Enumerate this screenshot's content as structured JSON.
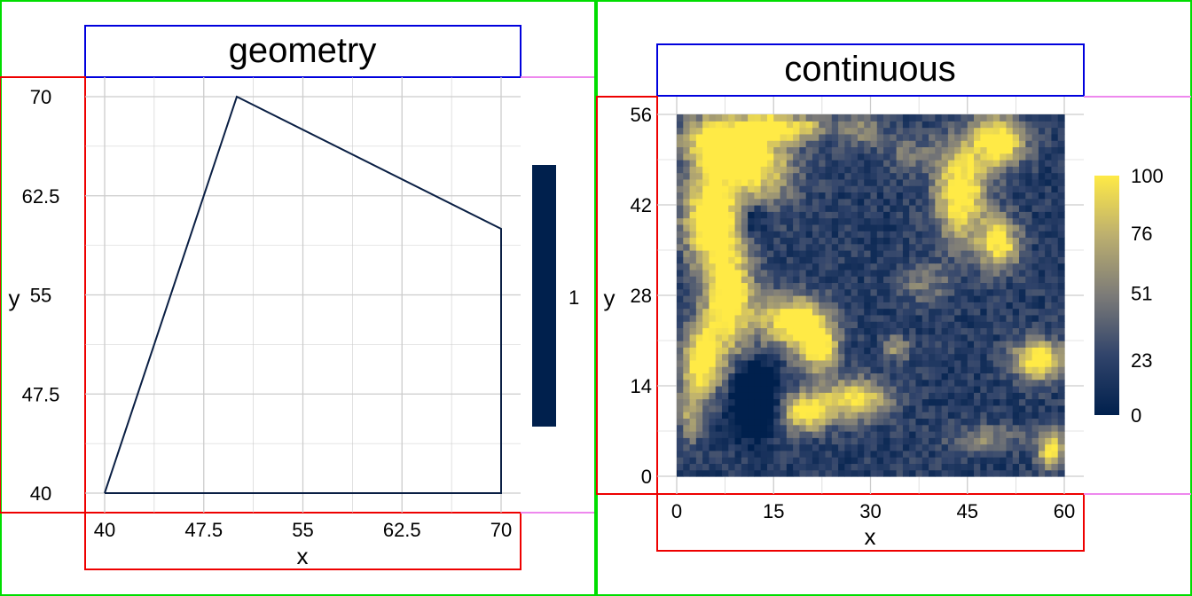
{
  "colors": {
    "outer_box": "#00dd00",
    "title_box": "#0000dd",
    "axis_box": "#ee0000",
    "legend_box": "#ee88ee",
    "grid": "#cccccc",
    "polygon": "#0a1f44",
    "viridis_low": "#00204d",
    "viridis_mid": "#7c7b78",
    "viridis_high": "#ffea46"
  },
  "chart_data": [
    {
      "type": "line",
      "title": "geometry",
      "xlabel": "x",
      "ylabel": "y",
      "xlim": [
        40,
        70
      ],
      "ylim": [
        40,
        70
      ],
      "x_ticks": [
        "40",
        "47.5",
        "55",
        "62.5",
        "70"
      ],
      "y_ticks": [
        "40",
        "47.5",
        "55",
        "62.5",
        "70"
      ],
      "polygon": [
        [
          40,
          40
        ],
        [
          50,
          70
        ],
        [
          70,
          60
        ],
        [
          70,
          40
        ],
        [
          40,
          40
        ]
      ],
      "legend": {
        "labels": [
          "1"
        ],
        "color": "#00204d"
      },
      "grid": true
    },
    {
      "type": "heatmap",
      "title": "continuous",
      "xlabel": "x",
      "ylabel": "y",
      "xlim": [
        0,
        60
      ],
      "ylim": [
        0,
        56
      ],
      "x_ticks": [
        "0",
        "15",
        "30",
        "45",
        "60"
      ],
      "y_ticks": [
        "0",
        "14",
        "28",
        "42",
        "56"
      ],
      "colorbar": {
        "labels": [
          "100",
          "76",
          "51",
          "23",
          "0"
        ],
        "range": [
          0,
          100
        ]
      },
      "grid": true
    }
  ]
}
